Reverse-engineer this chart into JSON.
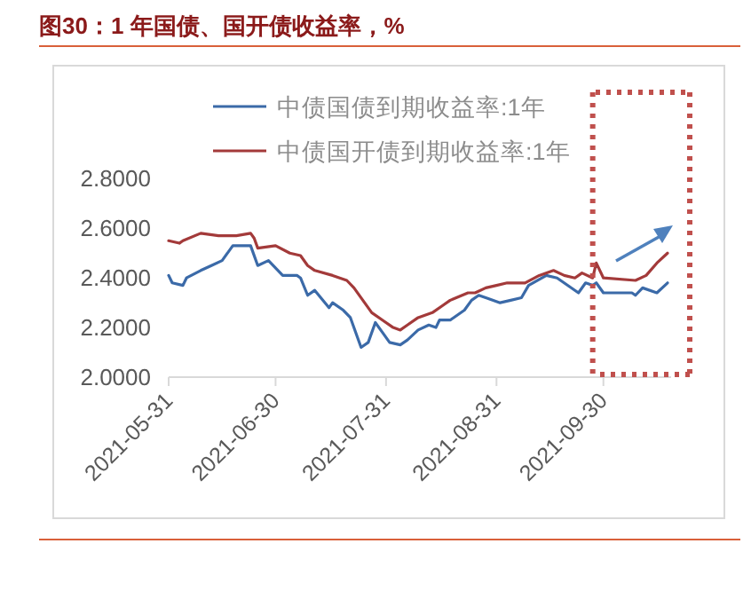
{
  "chart_data": {
    "type": "line",
    "title": "图30：1 年国债、国开债收益率，%",
    "xlim": [
      "2021-05-31",
      "2021-10-19"
    ],
    "ref_lines": [
      {
        "axis": "x",
        "value": "2021-09-27",
        "color": "#c0504d",
        "line_style": "dotted"
      }
    ],
    "xticks": [
      "2021-05-31",
      "2021-06-30",
      "2021-07-31",
      "2021-08-31",
      "2021-09-30"
    ],
    "ylim": [
      2.0,
      2.8
    ],
    "yticks": [
      {
        "value": 2.0,
        "label": "2.0000"
      },
      {
        "value": 2.2,
        "label": "2.2000"
      },
      {
        "value": 2.4,
        "label": "2.4000"
      },
      {
        "value": 2.6,
        "label": "2.6000"
      },
      {
        "value": 2.8,
        "label": "2.8000"
      }
    ],
    "grid": false,
    "legend": "top",
    "marker": "none",
    "line_style": "solid",
    "series": [
      {
        "name": "中债国债到期收益率:1年",
        "color": "#3b6aa8",
        "x": [
          "2021-05-31",
          "2021-06-01",
          "2021-06-04",
          "2021-06-05",
          "2021-06-09",
          "2021-06-12",
          "2021-06-15",
          "2021-06-18",
          "2021-06-23",
          "2021-06-25",
          "2021-06-28",
          "2021-07-02",
          "2021-07-06",
          "2021-07-07",
          "2021-07-09",
          "2021-07-11",
          "2021-07-15",
          "2021-07-16",
          "2021-07-19",
          "2021-07-21",
          "2021-07-24",
          "2021-07-26",
          "2021-07-28",
          "2021-07-30",
          "2021-08-01",
          "2021-08-04",
          "2021-08-06",
          "2021-08-09",
          "2021-08-12",
          "2021-08-14",
          "2021-08-15",
          "2021-08-18",
          "2021-08-22",
          "2021-08-24",
          "2021-08-26",
          "2021-08-28",
          "2021-09-01",
          "2021-09-04",
          "2021-09-07",
          "2021-09-09",
          "2021-09-14",
          "2021-09-17",
          "2021-09-23",
          "2021-09-25",
          "2021-09-27",
          "2021-09-28",
          "2021-09-30",
          "2021-10-04",
          "2021-10-08",
          "2021-10-09",
          "2021-10-11",
          "2021-10-15",
          "2021-10-18"
        ],
        "values": [
          2.41,
          2.38,
          2.37,
          2.4,
          2.43,
          2.45,
          2.47,
          2.53,
          2.53,
          2.45,
          2.47,
          2.41,
          2.41,
          2.4,
          2.33,
          2.35,
          2.28,
          2.3,
          2.27,
          2.24,
          2.12,
          2.14,
          2.22,
          2.18,
          2.14,
          2.13,
          2.15,
          2.19,
          2.21,
          2.2,
          2.23,
          2.23,
          2.27,
          2.31,
          2.33,
          2.32,
          2.3,
          2.31,
          2.32,
          2.37,
          2.41,
          2.4,
          2.34,
          2.38,
          2.37,
          2.38,
          2.34,
          2.34,
          2.34,
          2.33,
          2.36,
          2.34,
          2.38
        ]
      },
      {
        "name": "中债国开债到期收益率:1年",
        "color": "#a33a3a",
        "x": [
          "2021-05-31",
          "2021-06-03",
          "2021-06-04",
          "2021-06-09",
          "2021-06-14",
          "2021-06-19",
          "2021-06-23",
          "2021-06-24",
          "2021-06-25",
          "2021-06-30",
          "2021-07-04",
          "2021-07-07",
          "2021-07-09",
          "2021-07-11",
          "2021-07-16",
          "2021-07-20",
          "2021-07-22",
          "2021-07-27",
          "2021-07-30",
          "2021-08-02",
          "2021-08-04",
          "2021-08-06",
          "2021-08-09",
          "2021-08-13",
          "2021-08-16",
          "2021-08-18",
          "2021-08-23",
          "2021-08-25",
          "2021-08-28",
          "2021-08-31",
          "2021-09-03",
          "2021-09-08",
          "2021-09-12",
          "2021-09-16",
          "2021-09-19",
          "2021-09-22",
          "2021-09-24",
          "2021-09-27",
          "2021-09-28",
          "2021-09-30",
          "2021-10-09",
          "2021-10-12",
          "2021-10-15",
          "2021-10-18"
        ],
        "values": [
          2.55,
          2.54,
          2.55,
          2.58,
          2.57,
          2.57,
          2.58,
          2.56,
          2.52,
          2.53,
          2.5,
          2.49,
          2.45,
          2.43,
          2.41,
          2.39,
          2.36,
          2.26,
          2.23,
          2.2,
          2.19,
          2.21,
          2.24,
          2.26,
          2.29,
          2.31,
          2.34,
          2.34,
          2.36,
          2.37,
          2.38,
          2.38,
          2.41,
          2.43,
          2.41,
          2.4,
          2.42,
          2.4,
          2.46,
          2.4,
          2.39,
          2.41,
          2.46,
          2.5
        ]
      }
    ]
  }
}
